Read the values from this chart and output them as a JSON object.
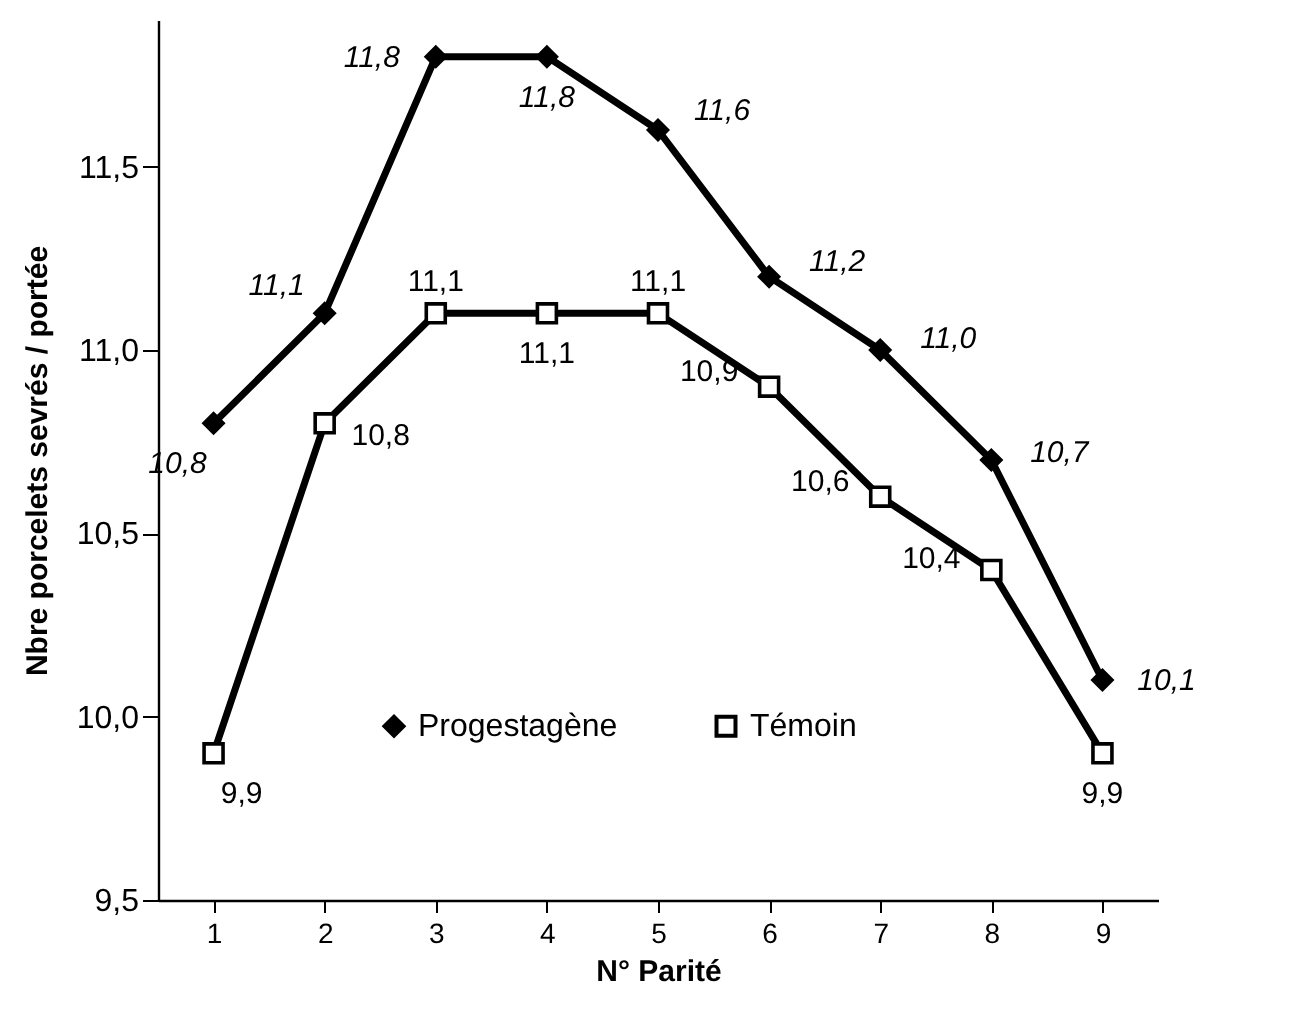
{
  "chart_data": {
    "type": "line",
    "xlabel": "N° Parité",
    "ylabel": "Nbre porcelets sevrés / portée",
    "categories": [
      "1",
      "2",
      "3",
      "4",
      "5",
      "6",
      "7",
      "8",
      "9"
    ],
    "series": [
      {
        "name": "Progestagène",
        "color": "#000000",
        "marker": "diamond",
        "values": [
          10.8,
          11.1,
          11.8,
          11.8,
          11.6,
          11.2,
          11.0,
          10.7,
          10.1
        ],
        "value_labels": [
          "10,8",
          "11,1",
          "11,8",
          "11,8",
          "11,6",
          "11,2",
          "11,0",
          "10,7",
          "10,1"
        ]
      },
      {
        "name": "Témoin",
        "color": "#000000",
        "marker": "square",
        "values": [
          9.9,
          10.8,
          11.1,
          11.1,
          11.1,
          10.9,
          10.6,
          10.4,
          9.9
        ],
        "value_labels": [
          "9,9",
          "10,8",
          "11,1",
          "11,1",
          "11,1",
          "10,9",
          "10,6",
          "10,4",
          "9,9"
        ]
      }
    ],
    "ylim": [
      9.5,
      11.9
    ],
    "yticks": [
      {
        "value": 9.5,
        "label": "9,5"
      },
      {
        "value": 10,
        "label": "10,0"
      },
      {
        "value": 10.5,
        "label": "10,5"
      },
      {
        "value": 11,
        "label": "11,0"
      },
      {
        "value": 11.5,
        "label": "11,5"
      }
    ],
    "grid": false,
    "legend": "bottom"
  }
}
